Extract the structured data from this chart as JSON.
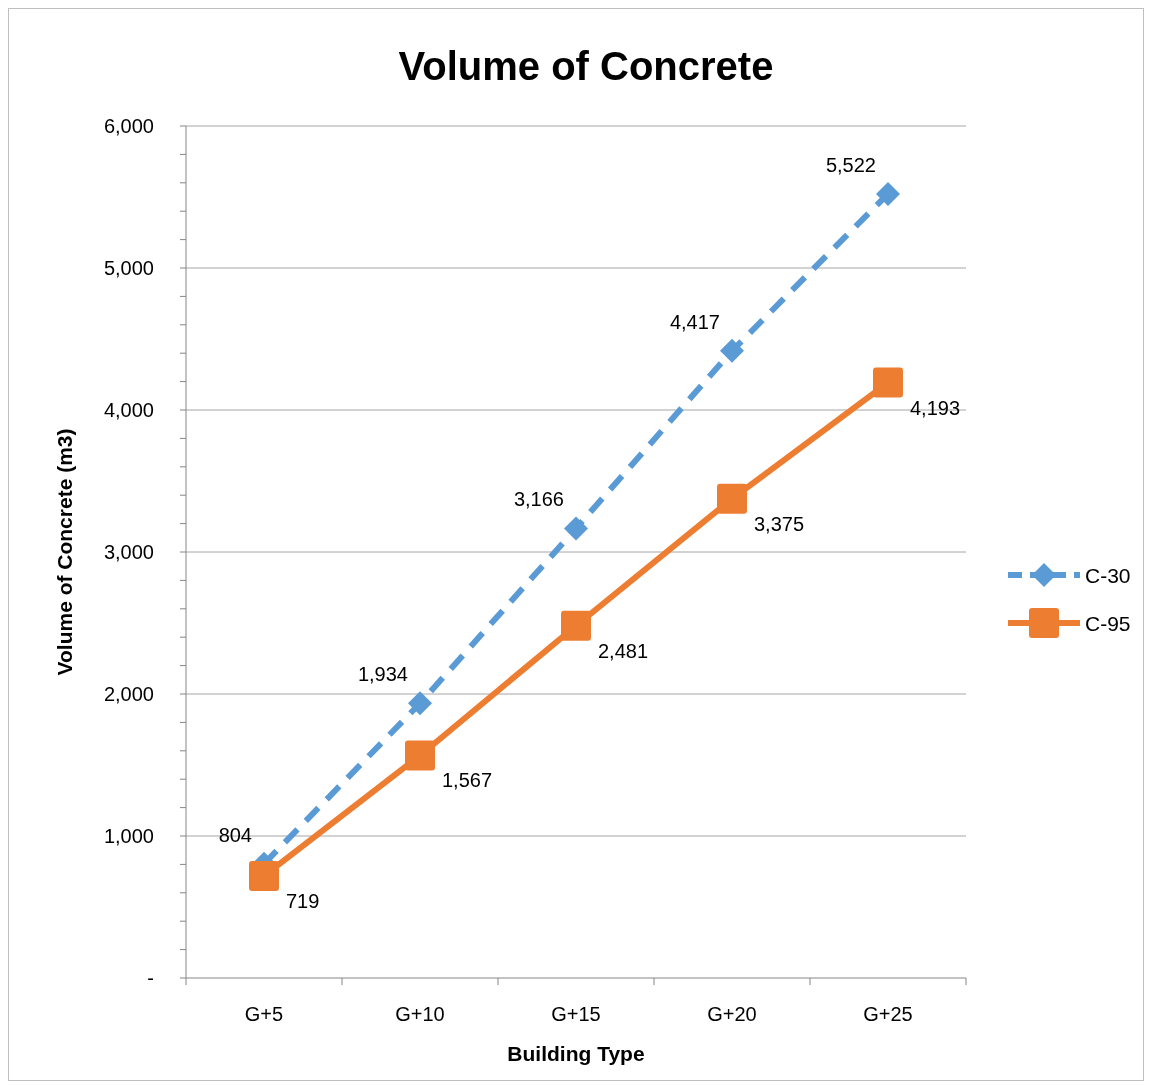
{
  "chart_data": {
    "type": "line",
    "title": "Volume of Concrete",
    "xlabel": "Building Type",
    "ylabel": "Volume of Concrete (m3)",
    "categories": [
      "G+5",
      "G+10",
      "G+15",
      "G+20",
      "G+25"
    ],
    "series": [
      {
        "name": "C-30",
        "color": "#5b9bd5",
        "values": [
          804,
          1934,
          3166,
          4417,
          5522
        ],
        "value_labels": [
          "804",
          "1,934",
          "3,166",
          "4,417",
          "5,522"
        ],
        "marker": "diamond",
        "line_style": "dashed"
      },
      {
        "name": "C-95",
        "color": "#ed7d31",
        "values": [
          719,
          1567,
          2481,
          3375,
          4193
        ],
        "value_labels": [
          "719",
          "1,567",
          "2,481",
          "3,375",
          "4,193"
        ],
        "marker": "square",
        "line_style": "solid"
      }
    ],
    "ylim": [
      0,
      6000
    ],
    "yticks": [
      {
        "value": 0,
        "label": "-"
      },
      {
        "value": 200,
        "label": null
      },
      {
        "value": 400,
        "label": null
      },
      {
        "value": 600,
        "label": null
      },
      {
        "value": 800,
        "label": null
      },
      {
        "value": 1000,
        "label": "1,000"
      },
      {
        "value": 1200,
        "label": null
      },
      {
        "value": 1400,
        "label": null
      },
      {
        "value": 1600,
        "label": null
      },
      {
        "value": 1800,
        "label": null
      },
      {
        "value": 2000,
        "label": "2,000"
      },
      {
        "value": 2200,
        "label": null
      },
      {
        "value": 2400,
        "label": null
      },
      {
        "value": 2600,
        "label": null
      },
      {
        "value": 2800,
        "label": null
      },
      {
        "value": 3000,
        "label": "3,000"
      },
      {
        "value": 3200,
        "label": null
      },
      {
        "value": 3400,
        "label": null
      },
      {
        "value": 3600,
        "label": null
      },
      {
        "value": 3800,
        "label": null
      },
      {
        "value": 4000,
        "label": "4,000"
      },
      {
        "value": 4200,
        "label": null
      },
      {
        "value": 4400,
        "label": null
      },
      {
        "value": 4600,
        "label": null
      },
      {
        "value": 4800,
        "label": null
      },
      {
        "value": 5000,
        "label": "5,000"
      },
      {
        "value": 5200,
        "label": null
      },
      {
        "value": 5400,
        "label": null
      },
      {
        "value": 5600,
        "label": null
      },
      {
        "value": 5800,
        "label": null
      },
      {
        "value": 6000,
        "label": "6,000"
      }
    ],
    "grid": "y",
    "legend": "right"
  }
}
